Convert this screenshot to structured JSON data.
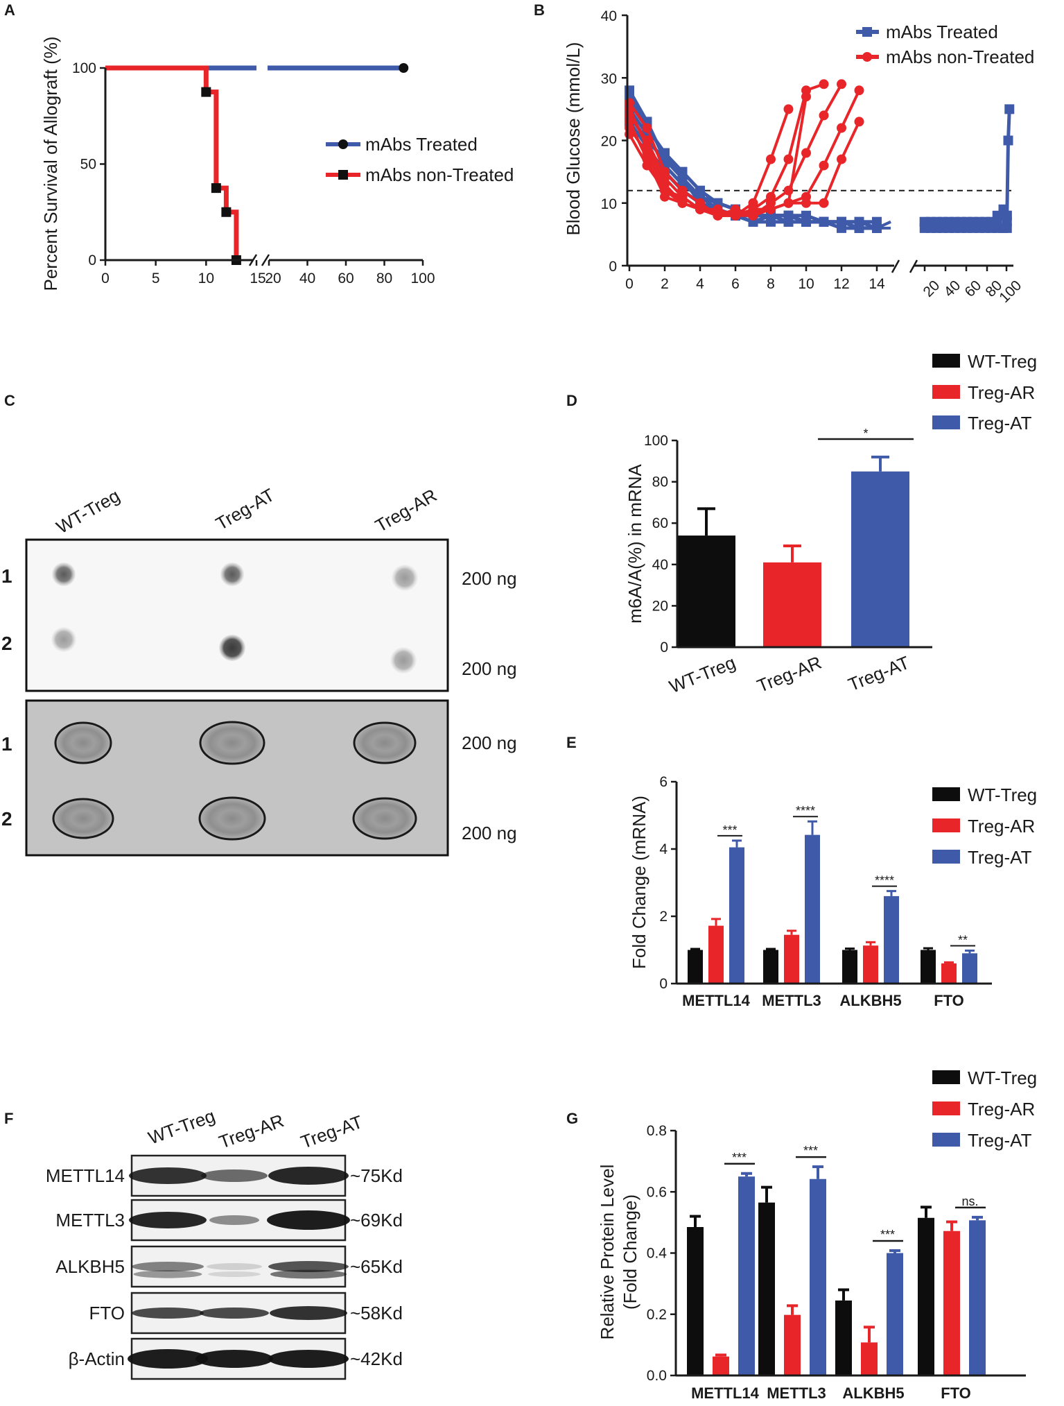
{
  "panels": {
    "A": "A",
    "B": "B",
    "C": "C",
    "D": "D",
    "E": "E",
    "F": "F",
    "G": "G"
  },
  "colors": {
    "black": "#0d0d0d",
    "red": "#e8262a",
    "blue": "#3f5aa8"
  },
  "chart_data": [
    {
      "id": "A",
      "type": "line",
      "subtype": "kaplan-meier",
      "ylabel": "Percent Survival of Allograft (%)",
      "xlabel": "",
      "xlim_segment1": [
        0,
        15
      ],
      "xlim_segment2": [
        20,
        100
      ],
      "ylim": [
        0,
        100
      ],
      "x_ticks_segment1": [
        "0",
        "5",
        "10",
        "15"
      ],
      "x_ticks_segment2": [
        "20",
        "40",
        "60",
        "80",
        "100"
      ],
      "y_ticks": [
        "0",
        "50",
        "100"
      ],
      "legend": [
        "mAbs Treated",
        "mAbs non-Treated"
      ],
      "series": [
        {
          "name": "mAbs Treated",
          "color": "blue",
          "marker": "circle",
          "steps": [
            [
              0,
              100
            ],
            [
              90,
              100
            ]
          ],
          "markers": [
            [
              90,
              100
            ]
          ]
        },
        {
          "name": "mAbs non-Treated",
          "color": "red",
          "marker": "square",
          "steps": [
            [
              0,
              100
            ],
            [
              10,
              100
            ],
            [
              10,
              87.5
            ],
            [
              11,
              87.5
            ],
            [
              11,
              37.5
            ],
            [
              12,
              37.5
            ],
            [
              12,
              25
            ],
            [
              13,
              25
            ],
            [
              13,
              0
            ]
          ],
          "markers": [
            [
              10,
              87.5
            ],
            [
              11,
              37.5
            ],
            [
              12,
              25
            ],
            [
              13,
              0
            ]
          ]
        }
      ]
    },
    {
      "id": "B",
      "type": "line",
      "ylabel": "Blood Glucose (mmol/L)",
      "xlabel": "",
      "xlim_segment1": [
        0,
        15
      ],
      "xlim_segment2": [
        15,
        100
      ],
      "ylim": [
        0,
        40
      ],
      "threshold": 12,
      "x_ticks_segment1": [
        "0",
        "2",
        "4",
        "6",
        "8",
        "10",
        "12",
        "14"
      ],
      "x_ticks_segment2": [
        "20",
        "40",
        "60",
        "80",
        "100"
      ],
      "y_ticks": [
        "0",
        "10",
        "20",
        "30",
        "40"
      ],
      "legend": [
        "mAbs Treated",
        "mAbs non-Treated"
      ],
      "treated_days": [
        0,
        1,
        2,
        3,
        4,
        5,
        6,
        7,
        8,
        9,
        10,
        11,
        12,
        13,
        14
      ],
      "treated": [
        [
          28,
          23,
          17,
          14,
          10,
          9,
          8,
          8,
          8,
          8,
          7,
          7,
          7,
          7,
          6
        ],
        [
          26,
          22,
          18,
          15,
          12,
          10,
          9,
          8,
          8,
          7,
          7,
          7,
          7,
          6,
          6
        ],
        [
          25,
          21,
          16,
          13,
          11,
          9,
          8,
          7,
          7,
          7,
          7,
          7,
          6,
          6,
          6
        ],
        [
          24,
          20,
          17,
          14,
          11,
          10,
          9,
          8,
          8,
          8,
          8,
          7,
          7,
          7,
          7
        ],
        [
          27,
          22,
          18,
          14,
          11,
          9,
          8,
          8,
          8,
          8,
          7,
          7,
          7,
          6,
          6
        ],
        [
          23,
          19,
          15,
          12,
          10,
          9,
          8,
          7,
          8,
          8,
          7,
          7,
          7,
          7,
          7
        ]
      ],
      "treated_late_days": [
        20,
        25,
        30,
        35,
        40,
        45,
        50,
        55,
        60,
        65,
        70,
        75,
        80,
        85,
        88
      ],
      "treated_late": [
        [
          7,
          7,
          6,
          7,
          7,
          6,
          7,
          7,
          6,
          7,
          7,
          6,
          7,
          8,
          7
        ],
        [
          6,
          6,
          7,
          6,
          6,
          7,
          6,
          6,
          7,
          6,
          6,
          7,
          6,
          6,
          6
        ],
        [
          7,
          7,
          7,
          7,
          7,
          7,
          7,
          7,
          7,
          7,
          7,
          7,
          8,
          9,
          8
        ]
      ],
      "rejection": {
        "days": [
          88,
          89,
          90
        ],
        "values": [
          8,
          20,
          25
        ]
      },
      "untreated": [
        {
          "days": [
            0,
            1,
            2,
            3,
            4,
            5,
            6,
            7,
            8,
            9,
            10,
            11
          ],
          "values": [
            26,
            22,
            15,
            12,
            10,
            8,
            8,
            9,
            11,
            17,
            28,
            29
          ]
        },
        {
          "days": [
            0,
            1,
            2,
            3,
            4,
            5,
            6,
            7,
            8,
            9,
            10,
            11,
            12
          ],
          "values": [
            24,
            20,
            14,
            11,
            9,
            8,
            8,
            8,
            10,
            12,
            18,
            24,
            29
          ]
        },
        {
          "days": [
            0,
            1,
            2,
            3,
            4,
            5,
            6,
            7,
            8,
            9,
            10,
            11,
            12,
            13
          ],
          "values": [
            25,
            19,
            13,
            10,
            9,
            8,
            9,
            8,
            9,
            10,
            11,
            16,
            22,
            28
          ]
        },
        {
          "days": [
            0,
            1,
            2,
            3,
            4,
            5,
            6,
            7,
            8,
            9,
            10,
            11,
            12,
            13
          ],
          "values": [
            22,
            18,
            12,
            11,
            9,
            8,
            8,
            9,
            9,
            10,
            10,
            10,
            17,
            23
          ]
        },
        {
          "days": [
            0,
            1,
            2,
            3,
            4,
            5,
            6,
            7,
            8,
            9,
            10
          ],
          "values": [
            23,
            17,
            11,
            10,
            9,
            9,
            8,
            9,
            9,
            10,
            27
          ]
        },
        {
          "days": [
            0,
            1,
            2,
            3,
            4,
            5,
            6,
            7,
            8,
            9
          ],
          "values": [
            21,
            16,
            12,
            10,
            9,
            8,
            8,
            10,
            17,
            25
          ]
        }
      ]
    },
    {
      "id": "D",
      "type": "bar",
      "ylabel": "m6A/A(%) in mRNA",
      "ylim": [
        0,
        100
      ],
      "y_ticks": [
        "0",
        "20",
        "40",
        "60",
        "80",
        "100"
      ],
      "categories": [
        "WT-Treg",
        "Treg-AR",
        "Treg-AT"
      ],
      "values": [
        54,
        41,
        85
      ],
      "errors": [
        13,
        8,
        7
      ],
      "colors": [
        "black",
        "red",
        "blue"
      ],
      "significance": [
        {
          "from": 1,
          "to": 2,
          "label": "*"
        }
      ],
      "legend": [
        "WT-Treg",
        "Treg-AR",
        "Treg-AT"
      ]
    },
    {
      "id": "E",
      "type": "bar",
      "ylabel": "Fold Change (mRNA)",
      "ylim": [
        0,
        6
      ],
      "y_ticks": [
        "0",
        "2",
        "4",
        "6"
      ],
      "categories": [
        "METTL14",
        "METTL3",
        "ALKBH5",
        "FTO"
      ],
      "series": [
        {
          "name": "WT-Treg",
          "color": "black",
          "values": [
            1.0,
            1.0,
            1.0,
            1.0
          ],
          "errors": [
            0.03,
            0.03,
            0.04,
            0.05
          ]
        },
        {
          "name": "Treg-AR",
          "color": "red",
          "values": [
            1.72,
            1.45,
            1.13,
            0.6
          ],
          "errors": [
            0.2,
            0.12,
            0.1,
            0.03
          ]
        },
        {
          "name": "Treg-AT",
          "color": "blue",
          "values": [
            4.05,
            4.42,
            2.6,
            0.9
          ],
          "errors": [
            0.2,
            0.4,
            0.15,
            0.08
          ]
        }
      ],
      "significance": [
        "***",
        "****",
        "****",
        "**"
      ],
      "legend": [
        "WT-Treg",
        "Treg-AR",
        "Treg-AT"
      ]
    },
    {
      "id": "G",
      "type": "bar",
      "ylabel": "Relative Protein Level",
      "ylabel2": "(Fold Change)",
      "ylim": [
        0,
        0.8
      ],
      "y_ticks": [
        "0.0",
        "0.2",
        "0.4",
        "0.6",
        "0.8"
      ],
      "categories": [
        "METTL14",
        "METTL3",
        "ALKBH5",
        "FTO"
      ],
      "series": [
        {
          "name": "WT-Treg",
          "color": "black",
          "values": [
            0.485,
            0.565,
            0.245,
            0.515
          ],
          "errors": [
            0.035,
            0.05,
            0.035,
            0.035
          ]
        },
        {
          "name": "Treg-AR",
          "color": "red",
          "values": [
            0.062,
            0.198,
            0.108,
            0.472
          ],
          "errors": [
            0.005,
            0.03,
            0.05,
            0.03
          ]
        },
        {
          "name": "Treg-AT",
          "color": "blue",
          "values": [
            0.65,
            0.642,
            0.4,
            0.507
          ],
          "errors": [
            0.01,
            0.04,
            0.008,
            0.01
          ]
        }
      ],
      "significance": [
        "***",
        "***",
        "***",
        "ns."
      ],
      "legend": [
        "WT-Treg",
        "Treg-AR",
        "Treg-AT"
      ]
    }
  ],
  "dot_blot": {
    "columns": [
      "WT-Treg",
      "Treg-AT",
      "Treg-AR"
    ],
    "rows": [
      "1",
      "2"
    ],
    "amount": "200 ng"
  },
  "western_blot": {
    "columns": [
      "WT-Treg",
      "Treg-AR",
      "Treg-AT"
    ],
    "rows": [
      {
        "protein": "METTL14",
        "size": "~75Kd"
      },
      {
        "protein": "METTL3",
        "size": "~69Kd"
      },
      {
        "protein": "ALKBH5",
        "size": "~65Kd"
      },
      {
        "protein": "FTO",
        "size": "~58Kd"
      },
      {
        "protein": "β-Actin",
        "size": "~42Kd"
      }
    ]
  }
}
